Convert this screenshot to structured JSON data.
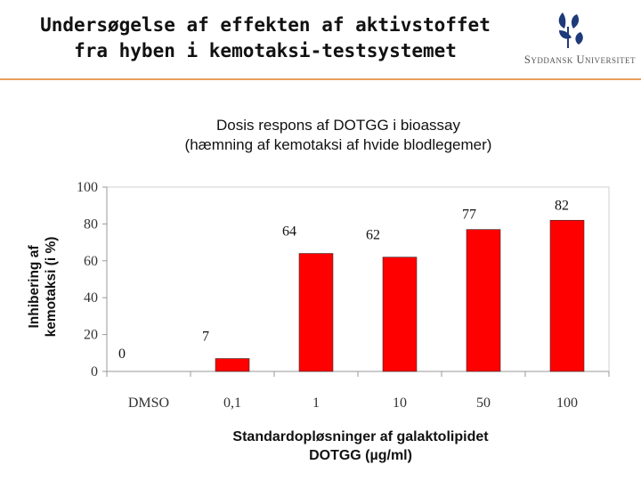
{
  "slide": {
    "title_line1": "Undersøgelse af effekten af aktivstoffet",
    "title_line2": "fra hyben i kemotaksi-testsystemet",
    "logo_text": "Syddansk Universitet",
    "accent_color": "#e8a060",
    "logo_color": "#1f3a7a"
  },
  "chart_data": {
    "type": "bar",
    "title_line1": "Dosis respons af DOTGG i bioassay",
    "title_line2": "(hæmning af kemotaksi af hvide blodlegemer)",
    "ylabel_line1": "Inhibering af",
    "ylabel_line2": "kemotaksi (i %)",
    "xlabel_line1": "Standardopløsninger af galaktolipidet",
    "xlabel_line2": "DOTGG (µg/ml)",
    "categories": [
      "DMSO",
      "0,1",
      "1",
      "10",
      "50",
      "100"
    ],
    "values": [
      0,
      7,
      64,
      62,
      77,
      82
    ],
    "data_labels": [
      "0",
      "7",
      "64",
      "62",
      "77",
      "82"
    ],
    "ylim": [
      0,
      100
    ],
    "yticks": [
      0,
      20,
      40,
      60,
      80,
      100
    ],
    "bar_color": "#ff0000",
    "grid": false
  }
}
